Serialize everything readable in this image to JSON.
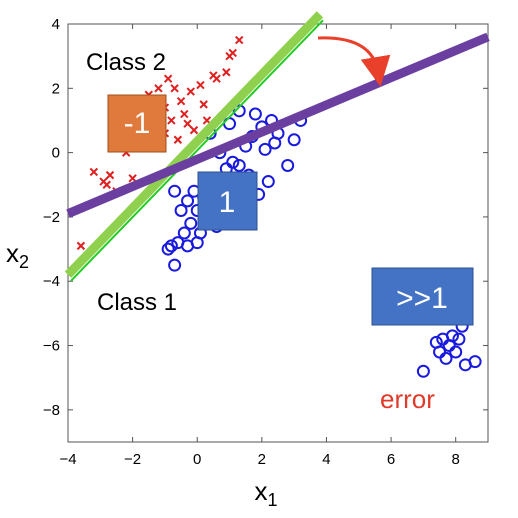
{
  "chart_data": {
    "type": "scatter",
    "title": "",
    "xlabel": "x",
    "xlabel_sub": "1",
    "ylabel": "x",
    "ylabel_sub": "2",
    "xlim": [
      -4,
      9
    ],
    "ylim": [
      -9,
      4
    ],
    "xticks": [
      -4,
      -2,
      0,
      2,
      4,
      6,
      8
    ],
    "yticks": [
      -8,
      -6,
      -4,
      -2,
      0,
      2,
      4
    ],
    "xtick_labels": [
      "−4",
      "−2",
      "0",
      "2",
      "4",
      "6",
      "8"
    ],
    "ytick_labels": [
      "−8",
      "−6",
      "−4",
      "−2",
      "0",
      "2",
      "4"
    ],
    "grid": false,
    "colors": {
      "class2": "#e02020",
      "class1": "#1a1adf",
      "green_line": "#8fd14f",
      "green_thin": "#22cc22",
      "purple_line": "#6b3fa0",
      "arrow": "#e8402a",
      "box_orange": "#e07a3c",
      "box_blue": "#4472c4",
      "error_text": "#e03a2a"
    },
    "class2_points": [
      [
        -3.6,
        -2.9
      ],
      [
        -3.2,
        -0.6
      ],
      [
        -2.9,
        -0.9
      ],
      [
        -2.8,
        -1.0
      ],
      [
        -2.7,
        -0.7
      ],
      [
        -2.5,
        -1.2
      ],
      [
        -2.2,
        0.0
      ],
      [
        -2.0,
        1.0
      ],
      [
        -1.8,
        1.5
      ],
      [
        -1.6,
        1.0
      ],
      [
        -1.5,
        1.8
      ],
      [
        -1.4,
        0.8
      ],
      [
        -1.2,
        2.0
      ],
      [
        -1.0,
        1.4
      ],
      [
        -1.0,
        0.6
      ],
      [
        -0.9,
        2.3
      ],
      [
        -0.8,
        1.0
      ],
      [
        -0.7,
        2.0
      ],
      [
        -0.6,
        0.4
      ],
      [
        -0.5,
        1.6
      ],
      [
        -0.4,
        1.2
      ],
      [
        -0.3,
        0.9
      ],
      [
        -0.2,
        1.9
      ],
      [
        -0.1,
        0.7
      ],
      [
        0.1,
        2.1
      ],
      [
        0.2,
        1.5
      ],
      [
        0.3,
        1.0
      ],
      [
        0.5,
        2.4
      ],
      [
        0.6,
        2.3
      ],
      [
        0.9,
        2.5
      ],
      [
        1.0,
        3.0
      ],
      [
        1.1,
        3.1
      ],
      [
        1.3,
        3.5
      ],
      [
        -2.0,
        -0.8
      ],
      [
        -1.7,
        0.4
      ]
    ],
    "class1_points": [
      [
        -0.9,
        -3.0
      ],
      [
        -0.8,
        -2.9
      ],
      [
        -0.7,
        -3.5
      ],
      [
        -0.6,
        -2.8
      ],
      [
        -0.4,
        -2.5
      ],
      [
        -0.3,
        -2.9
      ],
      [
        -0.2,
        -2.2
      ],
      [
        -0.1,
        -1.2
      ],
      [
        0.0,
        -2.8
      ],
      [
        0.0,
        -1.8
      ],
      [
        0.1,
        -2.5
      ],
      [
        0.2,
        -1.4
      ],
      [
        0.3,
        -2.0
      ],
      [
        0.4,
        -1.0
      ],
      [
        0.5,
        -1.6
      ],
      [
        0.6,
        -2.3
      ],
      [
        0.7,
        -0.8
      ],
      [
        0.8,
        -1.3
      ],
      [
        0.9,
        -0.5
      ],
      [
        1.0,
        -2.0
      ],
      [
        1.1,
        -0.3
      ],
      [
        1.2,
        -1.0
      ],
      [
        1.3,
        -0.4
      ],
      [
        1.4,
        -1.5
      ],
      [
        1.5,
        0.2
      ],
      [
        1.7,
        0.5
      ],
      [
        1.8,
        1.2
      ],
      [
        2.0,
        0.8
      ],
      [
        2.1,
        0.1
      ],
      [
        2.2,
        -0.9
      ],
      [
        2.3,
        1.0
      ],
      [
        2.5,
        0.6
      ],
      [
        2.8,
        -0.4
      ],
      [
        3.0,
        0.4
      ],
      [
        3.2,
        1.0
      ],
      [
        1.3,
        1.3
      ],
      [
        0.7,
        0.0
      ],
      [
        -0.7,
        -1.2
      ],
      [
        -0.5,
        -1.8
      ],
      [
        -0.3,
        -1.5
      ],
      [
        1.6,
        -0.7
      ],
      [
        1.9,
        -1.3
      ],
      [
        0.4,
        0.6
      ],
      [
        1.0,
        0.9
      ],
      [
        2.4,
        0.3
      ],
      [
        7.0,
        -6.8
      ],
      [
        7.4,
        -5.9
      ],
      [
        7.5,
        -6.2
      ],
      [
        7.7,
        -6.4
      ],
      [
        7.8,
        -6.0
      ],
      [
        7.9,
        -5.7
      ],
      [
        8.0,
        -6.2
      ],
      [
        8.1,
        -5.8
      ],
      [
        8.2,
        -5.4
      ],
      [
        8.3,
        -6.6
      ],
      [
        8.6,
        -6.5
      ],
      [
        7.6,
        -5.8
      ]
    ],
    "lines": [
      {
        "name": "green",
        "from": [
          -4,
          -3.8
        ],
        "to": [
          3.8,
          4.3
        ]
      },
      {
        "name": "purple",
        "from": [
          -4,
          -1.9
        ],
        "to": [
          9,
          3.6
        ]
      }
    ],
    "labels": {
      "class2": "Class 2",
      "class1": "Class 1",
      "error": "error",
      "box_minus_one": "-1",
      "box_one": "1",
      "box_much_greater": ">>1"
    }
  }
}
